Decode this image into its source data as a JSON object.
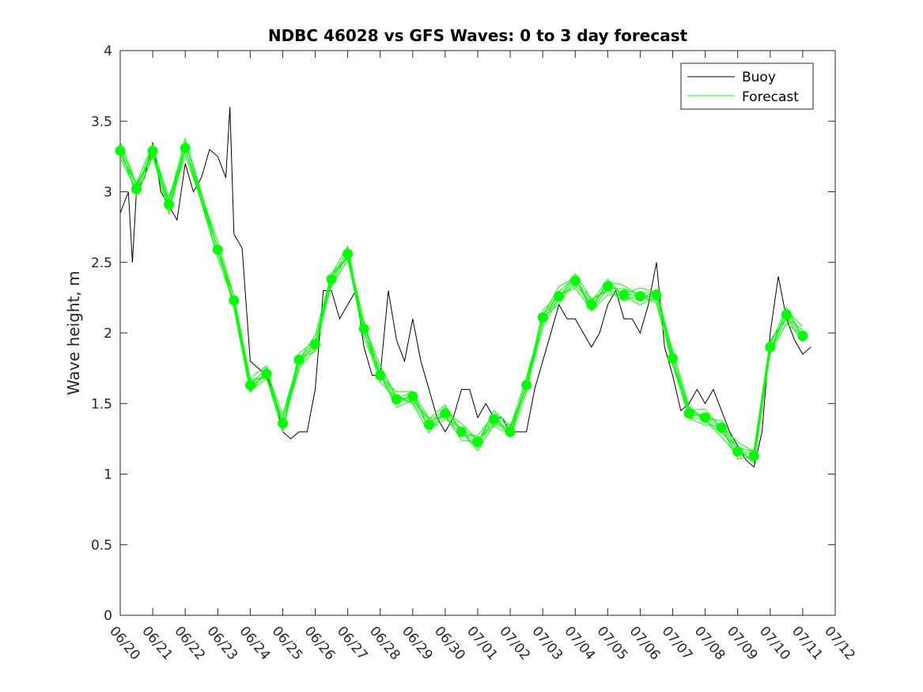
{
  "chart_data": {
    "type": "line",
    "title": "NDBC 46028 vs GFS Waves: 0 to 3 day forecast",
    "xlabel": "",
    "ylabel": "Wave height, m",
    "x_unit": "date (MM/DD)",
    "xticks": [
      "06/20",
      "06/21",
      "06/22",
      "06/23",
      "06/24",
      "06/25",
      "06/26",
      "06/27",
      "06/28",
      "06/29",
      "06/30",
      "07/01",
      "07/02",
      "07/03",
      "07/04",
      "07/05",
      "07/06",
      "07/07",
      "07/08",
      "07/09",
      "07/10",
      "07/11",
      "07/12"
    ],
    "xlim": [
      "06/20",
      "07/12"
    ],
    "ylim": [
      0,
      4
    ],
    "yticks": [
      0,
      0.5,
      1,
      1.5,
      2,
      2.5,
      3,
      3.5,
      4
    ],
    "ytick_labels": [
      "0",
      "0.5",
      "1",
      "1.5",
      "2",
      "2.5",
      "3",
      "3.5",
      "4"
    ],
    "grid": false,
    "legend_position": "top-right",
    "colors": {
      "buoy": "#000000",
      "forecast": "#00ff00"
    },
    "series": [
      {
        "name": "Buoy",
        "style": "line",
        "points": [
          [
            "06/20 00:00",
            2.85
          ],
          [
            "06/20 06:00",
            3.0
          ],
          [
            "06/20 09:00",
            2.5
          ],
          [
            "06/20 12:00",
            3.0
          ],
          [
            "06/20 18:00",
            3.1
          ],
          [
            "06/21 00:00",
            3.35
          ],
          [
            "06/21 06:00",
            3.0
          ],
          [
            "06/21 12:00",
            2.9
          ],
          [
            "06/21 18:00",
            2.8
          ],
          [
            "06/22 00:00",
            3.2
          ],
          [
            "06/22 06:00",
            3.0
          ],
          [
            "06/22 12:00",
            3.1
          ],
          [
            "06/22 18:00",
            3.3
          ],
          [
            "06/23 00:00",
            3.25
          ],
          [
            "06/23 06:00",
            3.1
          ],
          [
            "06/23 09:00",
            3.6
          ],
          [
            "06/23 12:00",
            2.7
          ],
          [
            "06/23 18:00",
            2.6
          ],
          [
            "06/24 00:00",
            1.8
          ],
          [
            "06/24 06:00",
            1.75
          ],
          [
            "06/24 12:00",
            1.7
          ],
          [
            "06/24 18:00",
            1.55
          ],
          [
            "06/25 00:00",
            1.3
          ],
          [
            "06/25 06:00",
            1.25
          ],
          [
            "06/25 12:00",
            1.3
          ],
          [
            "06/25 18:00",
            1.3
          ],
          [
            "06/26 00:00",
            1.6
          ],
          [
            "06/26 06:00",
            2.3
          ],
          [
            "06/26 12:00",
            2.3
          ],
          [
            "06/26 18:00",
            2.1
          ],
          [
            "06/27 00:00",
            2.2
          ],
          [
            "06/27 06:00",
            2.3
          ],
          [
            "06/27 12:00",
            1.9
          ],
          [
            "06/27 18:00",
            1.7
          ],
          [
            "06/28 00:00",
            1.7
          ],
          [
            "06/28 06:00",
            2.3
          ],
          [
            "06/28 12:00",
            1.95
          ],
          [
            "06/28 18:00",
            1.8
          ],
          [
            "06/29 00:00",
            2.1
          ],
          [
            "06/29 06:00",
            1.8
          ],
          [
            "06/29 12:00",
            1.6
          ],
          [
            "06/29 18:00",
            1.4
          ],
          [
            "06/30 00:00",
            1.3
          ],
          [
            "06/30 06:00",
            1.4
          ],
          [
            "06/30 12:00",
            1.6
          ],
          [
            "06/30 18:00",
            1.6
          ],
          [
            "07/01 00:00",
            1.4
          ],
          [
            "07/01 06:00",
            1.5
          ],
          [
            "07/01 12:00",
            1.4
          ],
          [
            "07/01 18:00",
            1.4
          ],
          [
            "07/02 00:00",
            1.3
          ],
          [
            "07/02 06:00",
            1.3
          ],
          [
            "07/02 12:00",
            1.3
          ],
          [
            "07/02 18:00",
            1.6
          ],
          [
            "07/03 00:00",
            1.8
          ],
          [
            "07/03 06:00",
            2.0
          ],
          [
            "07/03 12:00",
            2.2
          ],
          [
            "07/03 18:00",
            2.1
          ],
          [
            "07/04 00:00",
            2.1
          ],
          [
            "07/04 06:00",
            2.0
          ],
          [
            "07/04 12:00",
            1.9
          ],
          [
            "07/04 18:00",
            2.0
          ],
          [
            "07/05 00:00",
            2.2
          ],
          [
            "07/05 06:00",
            2.3
          ],
          [
            "07/05 12:00",
            2.1
          ],
          [
            "07/05 18:00",
            2.1
          ],
          [
            "07/06 00:00",
            2.0
          ],
          [
            "07/06 06:00",
            2.2
          ],
          [
            "07/06 12:00",
            2.5
          ],
          [
            "07/06 18:00",
            1.9
          ],
          [
            "07/07 00:00",
            1.7
          ],
          [
            "07/07 06:00",
            1.45
          ],
          [
            "07/07 12:00",
            1.5
          ],
          [
            "07/07 18:00",
            1.6
          ],
          [
            "07/08 00:00",
            1.5
          ],
          [
            "07/08 06:00",
            1.6
          ],
          [
            "07/08 12:00",
            1.45
          ],
          [
            "07/08 18:00",
            1.3
          ],
          [
            "07/09 00:00",
            1.2
          ],
          [
            "07/09 06:00",
            1.1
          ],
          [
            "07/09 12:00",
            1.05
          ],
          [
            "07/09 18:00",
            1.3
          ],
          [
            "07/10 00:00",
            2.0
          ],
          [
            "07/10 06:00",
            2.4
          ],
          [
            "07/10 12:00",
            2.1
          ],
          [
            "07/10 18:00",
            1.95
          ],
          [
            "07/11 00:00",
            1.85
          ],
          [
            "07/11 06:00",
            1.9
          ]
        ]
      },
      {
        "name": "Forecast",
        "style": "line+markers",
        "points": [
          [
            "06/20 00:00",
            3.29
          ],
          [
            "06/20 12:00",
            3.02
          ],
          [
            "06/21 00:00",
            3.29
          ],
          [
            "06/21 12:00",
            2.91
          ],
          [
            "06/22 00:00",
            3.31
          ],
          [
            "06/23 00:00",
            2.59
          ],
          [
            "06/23 12:00",
            2.23
          ],
          [
            "06/24 00:00",
            1.63
          ],
          [
            "06/24 12:00",
            1.71
          ],
          [
            "06/25 00:00",
            1.36
          ],
          [
            "06/25 12:00",
            1.81
          ],
          [
            "06/26 00:00",
            1.92
          ],
          [
            "06/26 12:00",
            2.38
          ],
          [
            "06/27 00:00",
            2.56
          ],
          [
            "06/27 12:00",
            2.03
          ],
          [
            "06/28 00:00",
            1.7
          ],
          [
            "06/28 12:00",
            1.53
          ],
          [
            "06/29 00:00",
            1.55
          ],
          [
            "06/29 12:00",
            1.35
          ],
          [
            "06/30 00:00",
            1.43
          ],
          [
            "06/30 12:00",
            1.3
          ],
          [
            "07/01 00:00",
            1.23
          ],
          [
            "07/01 12:00",
            1.39
          ],
          [
            "07/02 00:00",
            1.3
          ],
          [
            "07/02 12:00",
            1.63
          ],
          [
            "07/03 00:00",
            2.11
          ],
          [
            "07/03 12:00",
            2.26
          ],
          [
            "07/04 00:00",
            2.37
          ],
          [
            "07/04 12:00",
            2.2
          ],
          [
            "07/05 00:00",
            2.33
          ],
          [
            "07/05 12:00",
            2.27
          ],
          [
            "07/06 00:00",
            2.26
          ],
          [
            "07/06 12:00",
            2.27
          ],
          [
            "07/07 00:00",
            1.82
          ],
          [
            "07/07 12:00",
            1.43
          ],
          [
            "07/08 00:00",
            1.4
          ],
          [
            "07/08 12:00",
            1.33
          ],
          [
            "07/09 00:00",
            1.16
          ],
          [
            "07/09 12:00",
            1.13
          ],
          [
            "07/10 00:00",
            1.9
          ],
          [
            "07/10 12:00",
            2.13
          ],
          [
            "07/11 00:00",
            1.98
          ]
        ]
      }
    ],
    "legend": [
      {
        "label": "Buoy",
        "color": "#000000",
        "style": "line"
      },
      {
        "label": "Forecast",
        "color": "#00ff00",
        "style": "line"
      }
    ]
  }
}
